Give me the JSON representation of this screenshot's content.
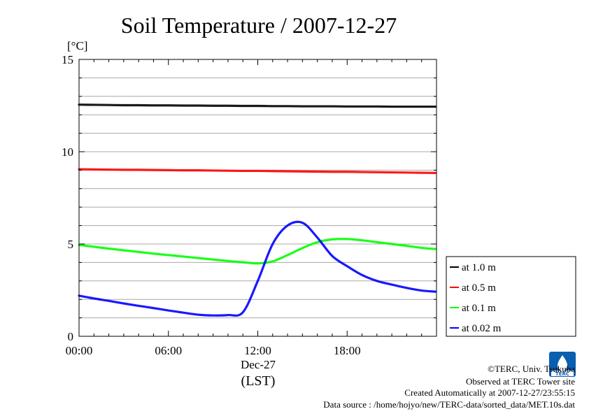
{
  "chart_data": {
    "type": "line",
    "title": "Soil Temperature / 2007-12-27",
    "ylabel": "[°C]",
    "xlabel": "(LST)",
    "x_date_label": "Dec-27",
    "ylim": [
      0,
      15
    ],
    "xlim": [
      "00:00",
      "24:00"
    ],
    "yticks": [
      "0",
      "5",
      "10",
      "15"
    ],
    "xticks": [
      "00:00",
      "06:00",
      "12:00",
      "18:00"
    ],
    "grid": true,
    "legend_position": "lower-right-outside",
    "x": [
      "00:00",
      "01:00",
      "02:00",
      "03:00",
      "04:00",
      "05:00",
      "06:00",
      "07:00",
      "08:00",
      "09:00",
      "10:00",
      "11:00",
      "12:00",
      "13:00",
      "14:00",
      "15:00",
      "16:00",
      "17:00",
      "18:00",
      "19:00",
      "20:00",
      "21:00",
      "22:00",
      "23:00",
      "23:55"
    ],
    "series": [
      {
        "name": "at 1.0 m",
        "color": "#000000",
        "values": [
          12.55,
          12.54,
          12.53,
          12.52,
          12.52,
          12.51,
          12.51,
          12.5,
          12.5,
          12.49,
          12.49,
          12.48,
          12.48,
          12.47,
          12.47,
          12.46,
          12.46,
          12.46,
          12.45,
          12.45,
          12.45,
          12.44,
          12.44,
          12.44,
          12.44
        ]
      },
      {
        "name": "at 0.5 m",
        "color": "#ff0000",
        "values": [
          9.05,
          9.04,
          9.03,
          9.02,
          9.02,
          9.01,
          9.0,
          8.99,
          8.99,
          8.98,
          8.97,
          8.96,
          8.96,
          8.95,
          8.94,
          8.93,
          8.92,
          8.91,
          8.91,
          8.9,
          8.89,
          8.88,
          8.87,
          8.86,
          8.85
        ]
      },
      {
        "name": "at 0.1 m",
        "color": "#00ff00",
        "values": [
          4.95,
          4.85,
          4.75,
          4.66,
          4.57,
          4.48,
          4.4,
          4.32,
          4.24,
          4.16,
          4.08,
          4.01,
          3.95,
          4.06,
          4.4,
          4.78,
          5.1,
          5.25,
          5.27,
          5.2,
          5.1,
          5.0,
          4.9,
          4.79,
          4.73
        ]
      },
      {
        "name": "at 0.02 m",
        "color": "#0000ff",
        "values": [
          2.2,
          2.05,
          1.92,
          1.78,
          1.65,
          1.53,
          1.4,
          1.28,
          1.17,
          1.13,
          1.15,
          1.3,
          3.0,
          5.0,
          6.0,
          6.15,
          5.35,
          4.35,
          3.8,
          3.32,
          3.0,
          2.8,
          2.62,
          2.48,
          2.42
        ]
      }
    ]
  },
  "footer": {
    "credit": "©TERC, Univ. Tsukuba",
    "site": "Observed at TERC Tower site",
    "created": "Created Automatically at 2007-12-27/23:55:15",
    "source": "Data source : /home/hojyo/new/TERC-data/sorted_data/MET.10s.dat"
  },
  "logo": {
    "text": "TERC",
    "color": "#0a5fb0"
  }
}
